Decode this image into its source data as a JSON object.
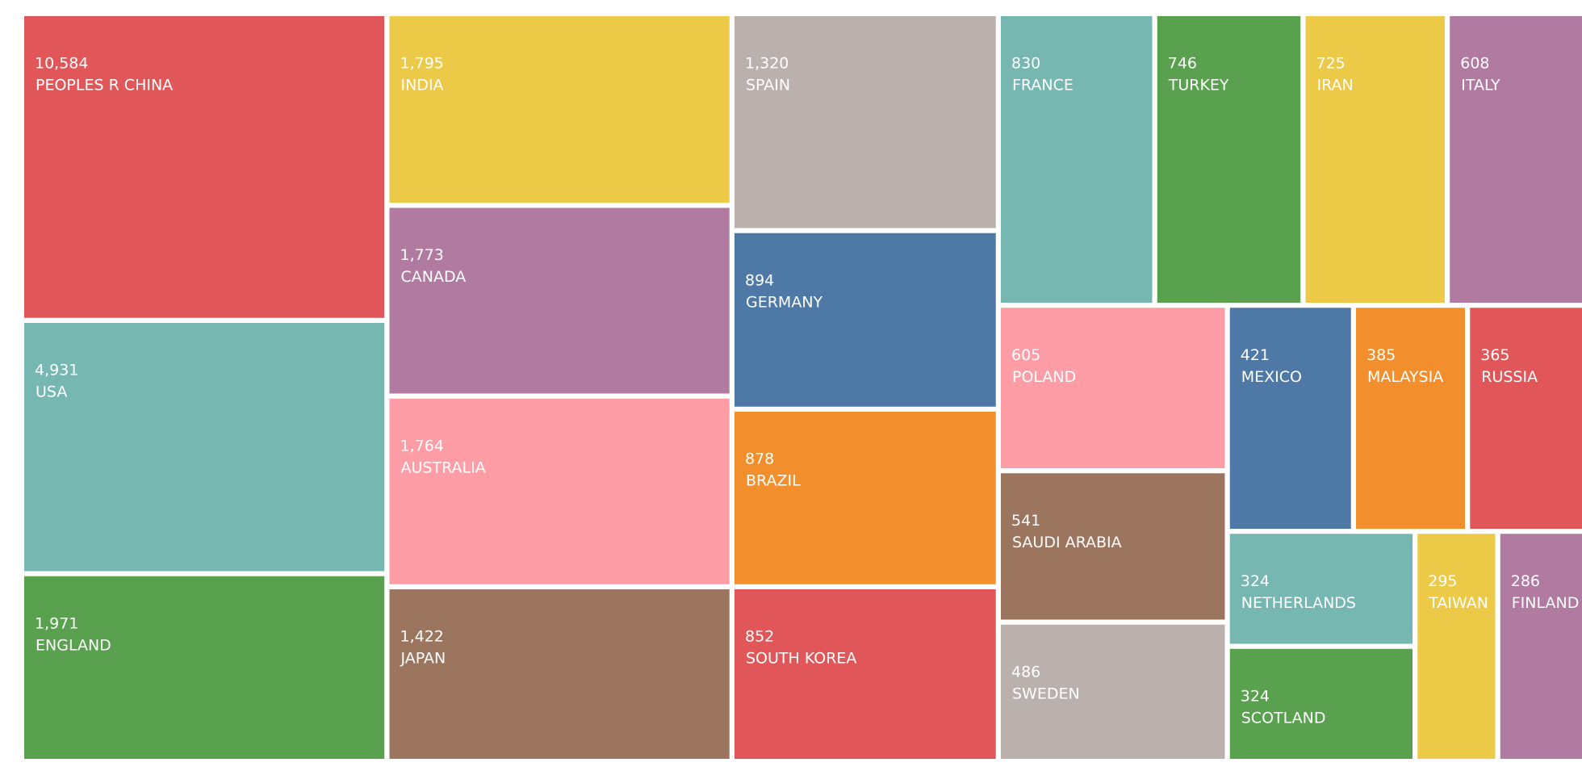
{
  "chart_data": {
    "type": "treemap",
    "labels": [
      "PEOPLES R CHINA",
      "USA",
      "ENGLAND",
      "INDIA",
      "CANADA",
      "AUSTRALIA",
      "JAPAN",
      "SPAIN",
      "GERMANY",
      "BRAZIL",
      "SOUTH KOREA",
      "FRANCE",
      "TURKEY",
      "IRAN",
      "ITALY",
      "POLAND",
      "SAUDI ARABIA",
      "SWEDEN",
      "MEXICO",
      "MALAYSIA",
      "RUSSIA",
      "NETHERLANDS",
      "SCOTLAND",
      "TAIWAN",
      "FINLAND"
    ],
    "values": [
      10584,
      4931,
      1971,
      1795,
      1773,
      1764,
      1422,
      1320,
      894,
      878,
      852,
      830,
      746,
      725,
      608,
      605,
      541,
      486,
      421,
      385,
      365,
      324,
      324,
      295,
      286
    ],
    "value_labels": [
      "10,584",
      "4,931",
      "1,971",
      "1,795",
      "1,773",
      "1,764",
      "1,422",
      "1,320",
      "894",
      "878",
      "852",
      "830",
      "746",
      "725",
      "608",
      "605",
      "541",
      "486",
      "421",
      "385",
      "365",
      "324",
      "324",
      "295",
      "286"
    ],
    "colors": [
      "#e15759",
      "#76b7b2",
      "#59a14f",
      "#edc948",
      "#b07aa1",
      "#ff9da7",
      "#9c755f",
      "#bab0ac",
      "#4e79a7",
      "#f28e2b",
      "#e15759",
      "#76b7b2",
      "#59a14f",
      "#edc948",
      "#b07aa1",
      "#ff9da7",
      "#9c755f",
      "#bab0ac",
      "#4e79a7",
      "#f28e2b",
      "#e15759",
      "#76b7b2",
      "#59a14f",
      "#edc948",
      "#b07aa1"
    ]
  }
}
